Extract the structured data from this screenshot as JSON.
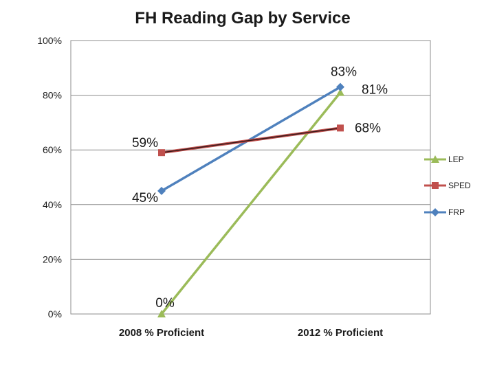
{
  "chart_data": {
    "type": "line",
    "title": "FH Reading Gap by Service",
    "categories": [
      "2008 % Proficient",
      "2012 % Proficient"
    ],
    "ylim": [
      0,
      100
    ],
    "yticks": [
      "0%",
      "20%",
      "40%",
      "60%",
      "80%",
      "100%"
    ],
    "ytick_values": [
      0,
      20,
      40,
      60,
      80,
      100
    ],
    "grid": true,
    "legend_position": "right",
    "series": [
      {
        "name": "LEP",
        "values": [
          0,
          81
        ],
        "labels": [
          "0%",
          "81%"
        ],
        "color": "#9bbb59",
        "line_color": "#9bbb59",
        "marker": "triangle"
      },
      {
        "name": "SPED",
        "values": [
          59,
          68
        ],
        "labels": [
          "59%",
          "68%"
        ],
        "color": "#c0504d",
        "line_color": "#3a1a1a",
        "marker": "square"
      },
      {
        "name": "FRP",
        "values": [
          45,
          83
        ],
        "labels": [
          "45%",
          "83%"
        ],
        "color": "#4f81bd",
        "line_color": "#4f81bd",
        "marker": "diamond"
      }
    ]
  }
}
